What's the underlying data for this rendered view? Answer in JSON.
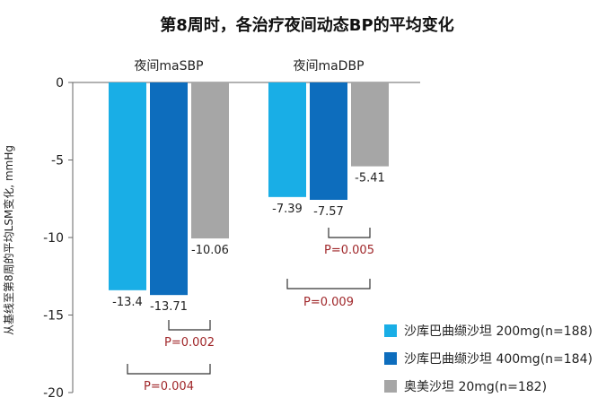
{
  "chart_data": {
    "type": "bar",
    "title": "第8周时，各治疗夜间动态BP的平均变化",
    "ylabel": "从基线至第8周的平均LSM变化, mmHg",
    "ylim": [
      -20,
      0
    ],
    "yticks": [
      0,
      -5,
      -10,
      -15,
      -20
    ],
    "categories": [
      "夜间maSBP",
      "夜间maDBP"
    ],
    "series": [
      {
        "name": "沙库巴曲缬沙坦 200mg(n=188)",
        "color": "#19aee6",
        "values": [
          -13.4,
          -7.39
        ],
        "labels": [
          "-13.4",
          "-7.39"
        ]
      },
      {
        "name": "沙库巴曲缬沙坦 400mg(n=184)",
        "color": "#0d6dbd",
        "values": [
          -13.71,
          -7.57
        ],
        "labels": [
          "-13.71",
          "-7.57"
        ]
      },
      {
        "name": "奥美沙坦 20mg(n=182)",
        "color": "#a6a6a6",
        "values": [
          -10.06,
          -5.41
        ],
        "labels": [
          "-10.06",
          "-5.41"
        ]
      }
    ],
    "comparisons": [
      {
        "category": 0,
        "from": 1,
        "to": 2,
        "label": "P=0.002"
      },
      {
        "category": 0,
        "from": 0,
        "to": 2,
        "label": "P=0.004"
      },
      {
        "category": 1,
        "from": 1,
        "to": 2,
        "label": "P=0.005"
      },
      {
        "category": 1,
        "from": 0,
        "to": 2,
        "label": "P=0.009"
      }
    ],
    "legend_position": "bottom-right",
    "grid": false
  }
}
